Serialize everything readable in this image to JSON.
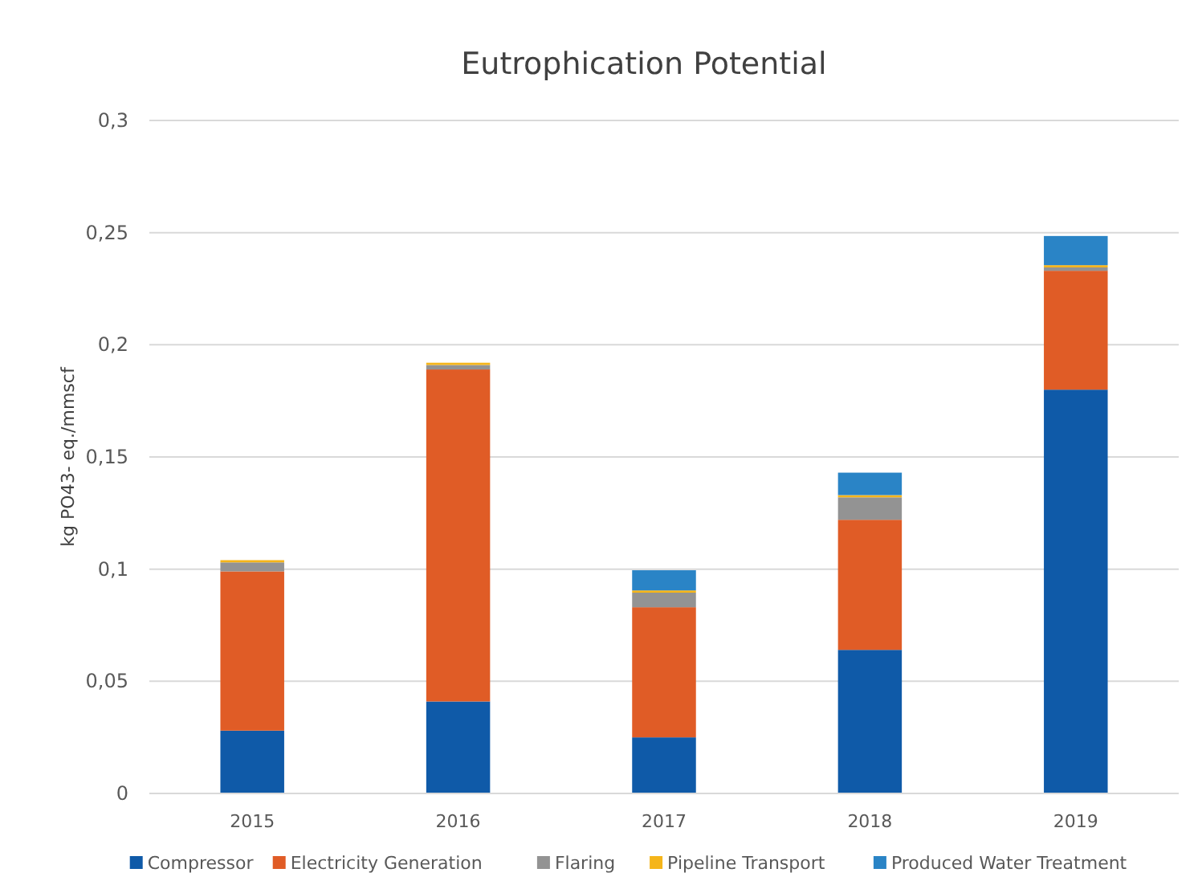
{
  "chart_data": {
    "type": "bar",
    "title": "Eutrophication Potential",
    "ylabel": "kg PO43- eq./mmscf",
    "categories": [
      "2015",
      "2016",
      "2017",
      "2018",
      "2019"
    ],
    "stacked": true,
    "ylim": [
      0,
      0.3
    ],
    "yticks": [
      {
        "value": 0,
        "label": "0"
      },
      {
        "value": 0.05,
        "label": "0,05"
      },
      {
        "value": 0.1,
        "label": "0,1"
      },
      {
        "value": 0.15,
        "label": "0,15"
      },
      {
        "value": 0.2,
        "label": "0,2"
      },
      {
        "value": 0.25,
        "label": "0,25"
      },
      {
        "value": 0.3,
        "label": "0,3"
      }
    ],
    "grid": "y",
    "legend": "bottom",
    "series": [
      {
        "name": "Compressor",
        "color": "#0f5aa8",
        "values": [
          0.028,
          0.041,
          0.025,
          0.064,
          0.18
        ]
      },
      {
        "name": "Electricity Generation",
        "color": "#e05c26",
        "values": [
          0.071,
          0.148,
          0.058,
          0.058,
          0.053
        ]
      },
      {
        "name": "Flaring",
        "color": "#939393",
        "values": [
          0.004,
          0.002,
          0.0065,
          0.01,
          0.0015
        ]
      },
      {
        "name": "Pipeline Transport",
        "color": "#f5b51a",
        "values": [
          0.001,
          0.001,
          0.001,
          0.001,
          0.001
        ]
      },
      {
        "name": "Produced Water Treatment",
        "color": "#2a84c6",
        "values": [
          0,
          0,
          0.009,
          0.01,
          0.013
        ]
      }
    ]
  }
}
